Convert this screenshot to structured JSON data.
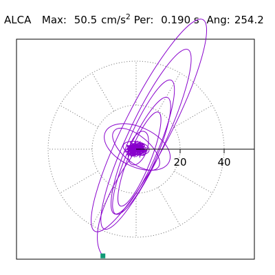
{
  "header": {
    "station": "ALCA",
    "max_label": "Max:",
    "max_value": "50.5",
    "max_unit": "cm/s",
    "max_unit_power": "2",
    "per_label": "Per:",
    "per_value": "0.190 s",
    "ang_label": "Ang:",
    "ang_value": "254.2"
  },
  "chart_data": {
    "type": "polar-particle-motion",
    "radial_rings": [
      20,
      40
    ],
    "tick_labels": [
      "20",
      "40"
    ],
    "radial_spokes_deg": [
      0,
      30,
      60,
      90,
      120,
      150,
      180,
      210,
      240,
      270,
      300,
      330
    ],
    "max_amplitude": 50.5,
    "max_unit": "cm/s²",
    "period_s": 0.19,
    "azimuth_deg": 254.2,
    "peak_marker": {
      "x": -15.1,
      "y": -48.5
    },
    "trace_ellipses": [
      {
        "cx": 5.8,
        "cy": 10.8,
        "a": 54.0,
        "b": 10.5,
        "angle": 63
      },
      {
        "cx": 4.5,
        "cy": 4.5,
        "a": 45.0,
        "b": 8.5,
        "angle": 65
      },
      {
        "cx": 3.0,
        "cy": 1.0,
        "a": 33.0,
        "b": 7.0,
        "angle": 67
      },
      {
        "cx": 2.5,
        "cy": -3.0,
        "a": 29.0,
        "b": 6.5,
        "angle": 66
      },
      {
        "cx": 1.5,
        "cy": -4.5,
        "a": 23.0,
        "b": 5.0,
        "angle": 68
      },
      {
        "cx": 0.5,
        "cy": 1.0,
        "a": 16.0,
        "b": 9.0,
        "angle": -25
      },
      {
        "cx": 0.0,
        "cy": 0.0,
        "a": 13.0,
        "b": 6.0,
        "angle": -40
      },
      {
        "cx": 1.0,
        "cy": 0.5,
        "a": 8.0,
        "b": 4.0,
        "angle": 70
      },
      {
        "cx": 0.0,
        "cy": 0.5,
        "a": 6.0,
        "b": 3.0,
        "angle": -10
      },
      {
        "cx": 0.0,
        "cy": 0.0,
        "a": 4.0,
        "b": 2.0,
        "angle": 30
      }
    ],
    "trace_color": "#8800cc",
    "marker_color": "#119977",
    "grid_color": "#7a7a7a"
  }
}
